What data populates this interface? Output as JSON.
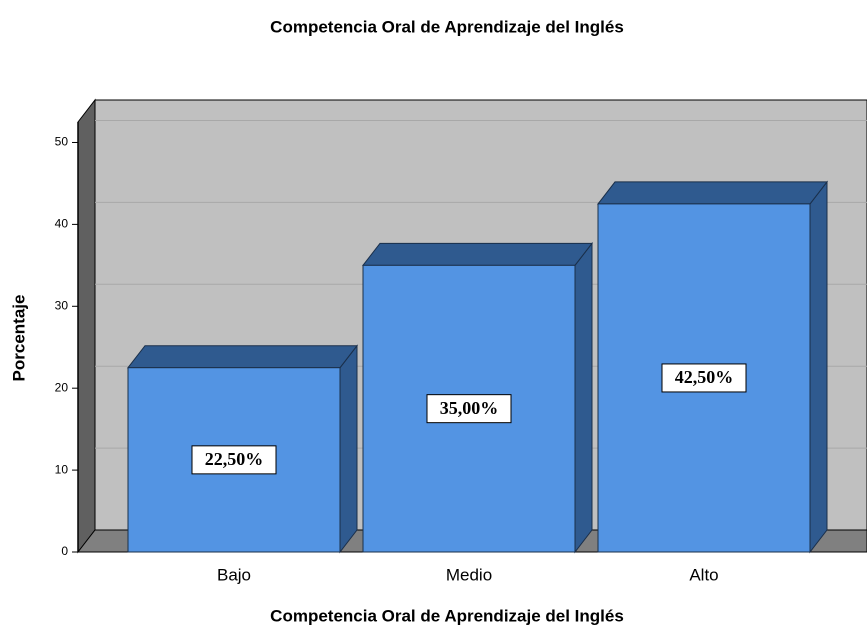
{
  "chart_data": {
    "type": "bar3d",
    "title": "Competencia Oral de Aprendizaje del  Inglés",
    "x_label": "Competencia Oral de Aprendizaje del  Inglés",
    "y_label": "Porcentaje",
    "categories": [
      "Bajo",
      "Medio",
      "Alto"
    ],
    "values": [
      22.5,
      35,
      42.5
    ],
    "value_labels": [
      "22,50%",
      "35,00%",
      "42,50%"
    ],
    "color": "#5394e3",
    "ylim": [
      0,
      52.5
    ],
    "yticks": [
      0,
      10,
      20,
      30,
      40,
      50
    ],
    "grid": true
  }
}
